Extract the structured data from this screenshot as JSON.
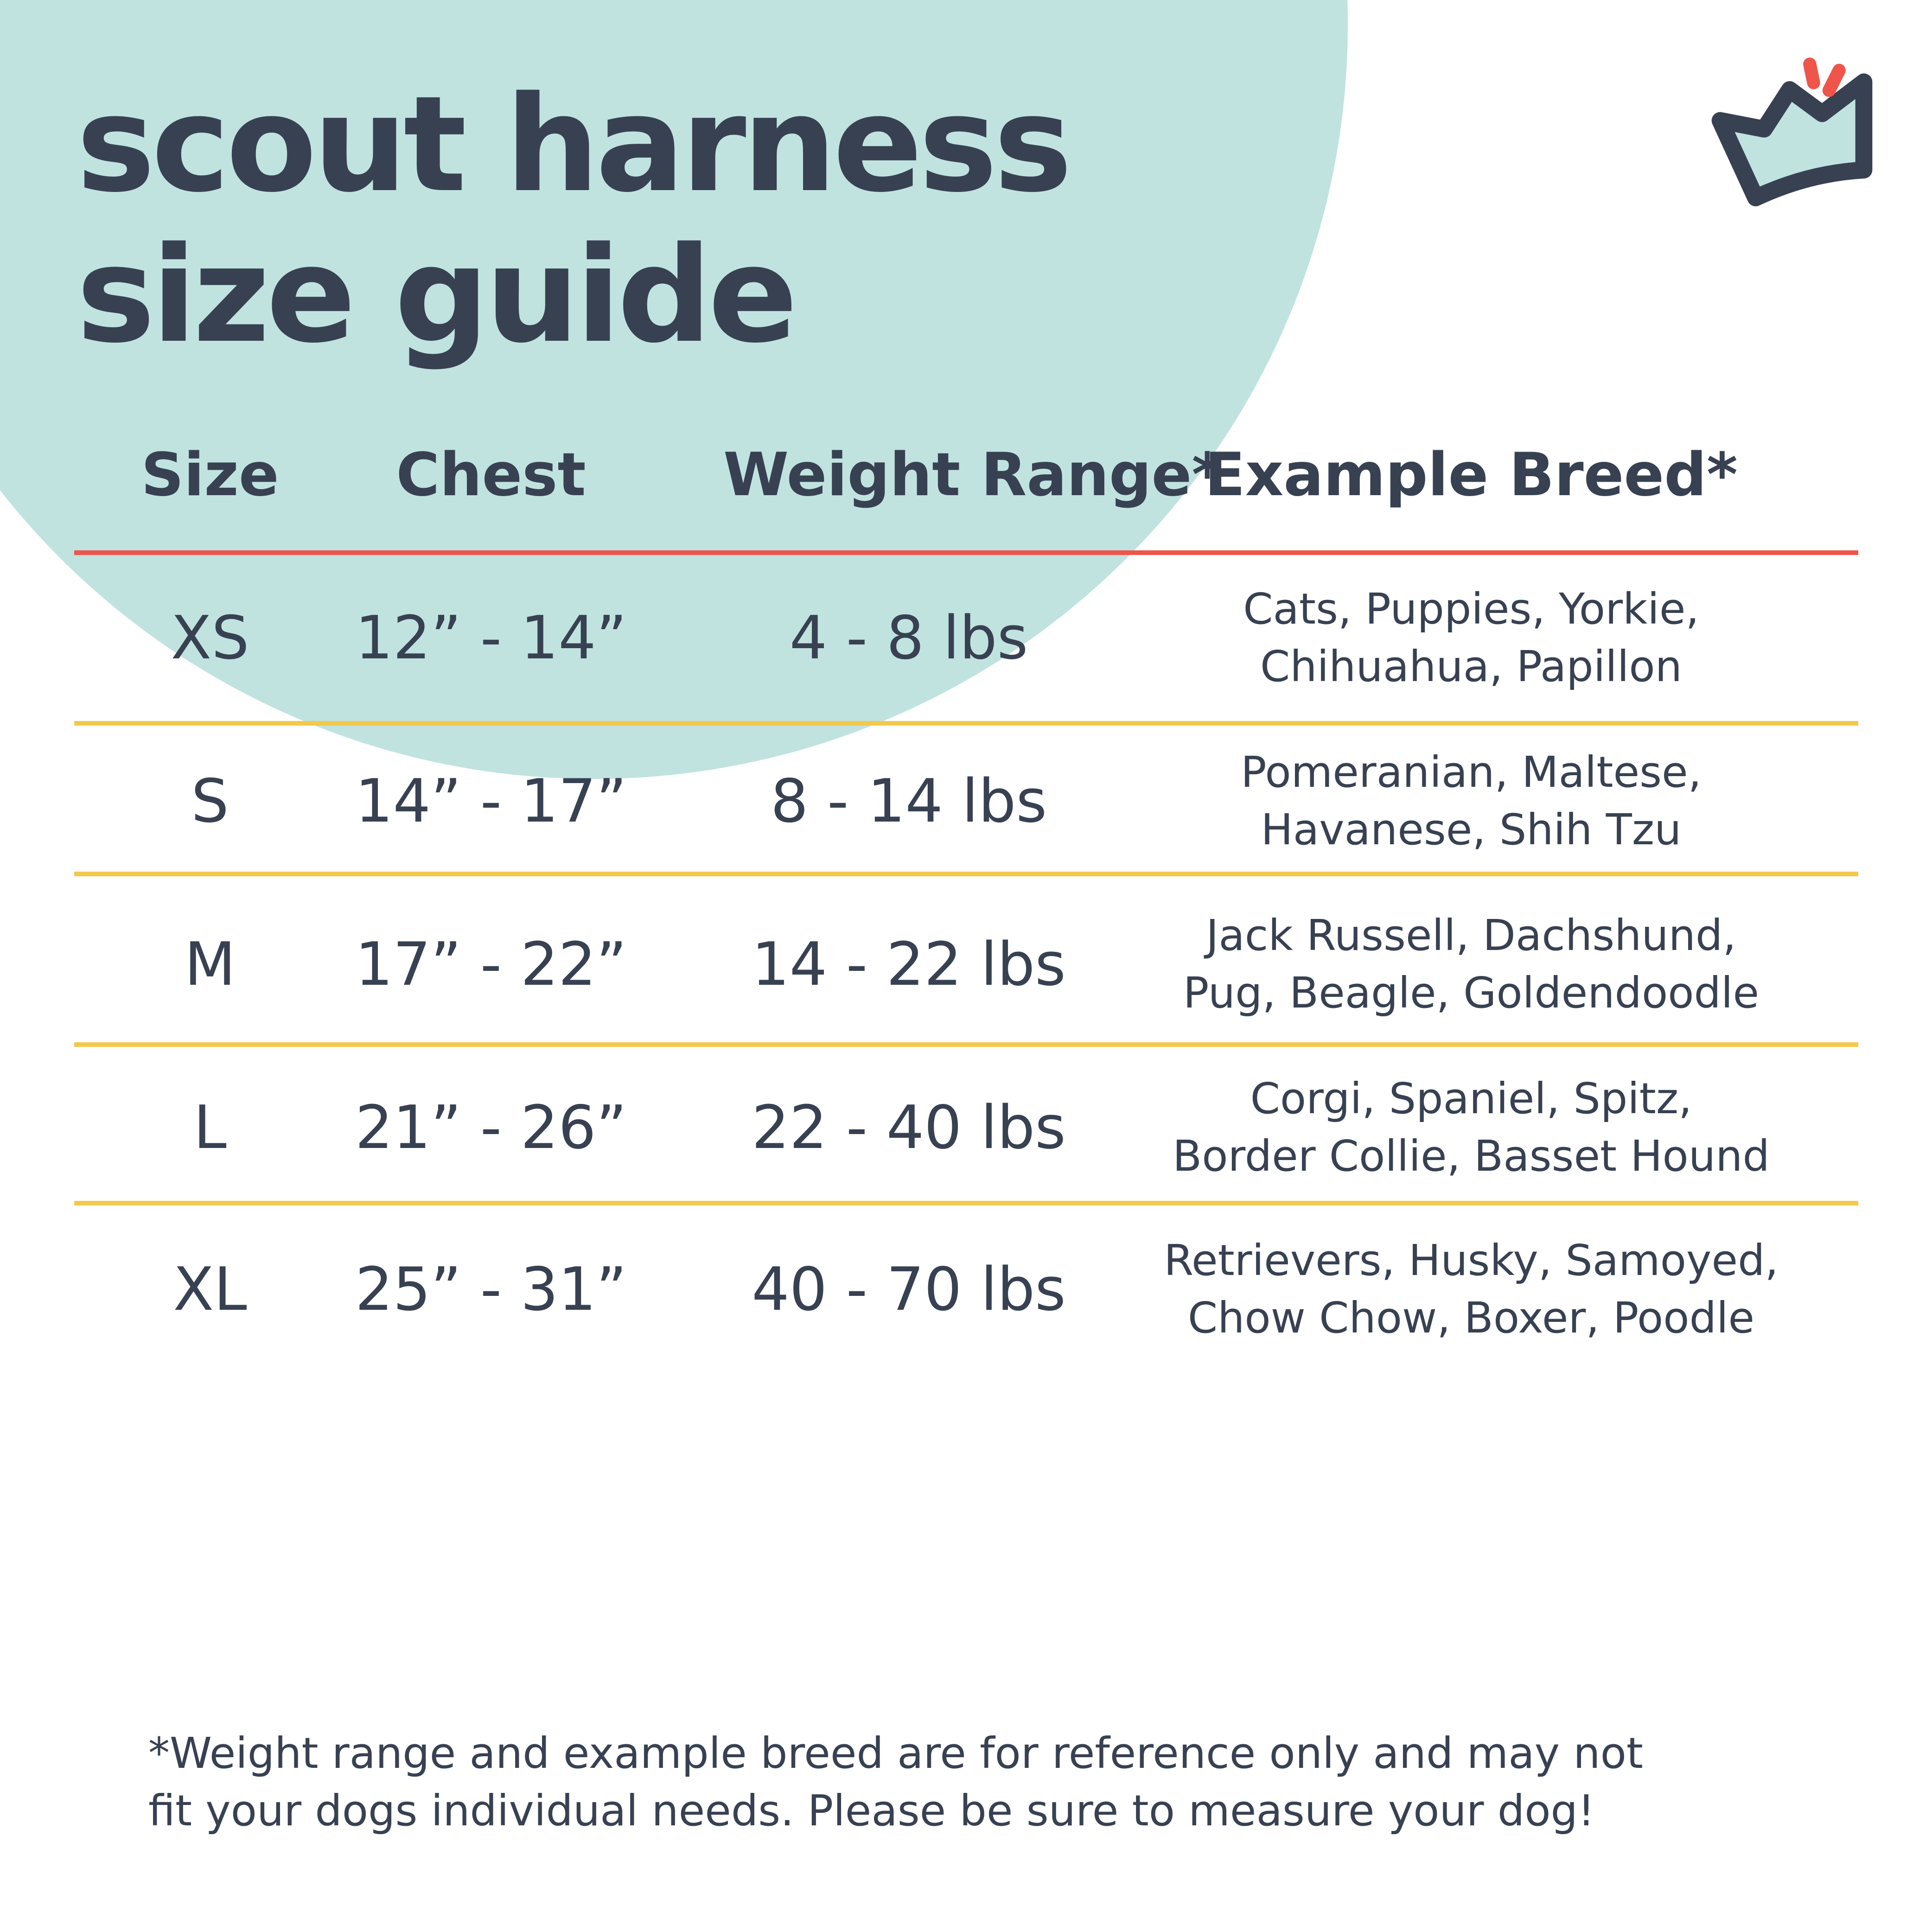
{
  "title_lines": [
    "scout harness",
    "size guide"
  ],
  "logo": {
    "icon": "crown-icon",
    "colors": {
      "outline": "#384152",
      "fill": "#c0e3e0",
      "accent": "#ef554a"
    }
  },
  "colors": {
    "text": "#384152",
    "circle": "#c0e3e0",
    "header_rule": "#ef554a",
    "row_rule": "#f2c94c"
  },
  "table": {
    "headers": [
      "Size",
      "Chest",
      "Weight Range*",
      "Example Breed*"
    ],
    "rows": [
      {
        "size": "XS",
        "chest": "12” - 14”",
        "weight": "4 - 8 lbs",
        "breed_lines": [
          "Cats, Puppies, Yorkie,",
          "Chihuahua, Papillon"
        ]
      },
      {
        "size": "S",
        "chest": "14” - 17”",
        "weight": "8 - 14 lbs",
        "breed_lines": [
          "Pomeranian, Maltese,",
          "Havanese, Shih Tzu"
        ]
      },
      {
        "size": "M",
        "chest": "17” - 22”",
        "weight": "14 - 22 lbs",
        "breed_lines": [
          "Jack Russell, Dachshund,",
          "Pug, Beagle, Goldendoodle"
        ]
      },
      {
        "size": "L",
        "chest": "21” - 26”",
        "weight": "22 - 40 lbs",
        "breed_lines": [
          "Corgi, Spaniel, Spitz,",
          "Border Collie, Basset Hound"
        ]
      },
      {
        "size": "XL",
        "chest": "25” - 31”",
        "weight": "40 - 70 lbs",
        "breed_lines": [
          "Retrievers, Husky, Samoyed,",
          "Chow Chow, Boxer, Poodle"
        ]
      }
    ]
  },
  "footnote_lines": [
    "*Weight range and example breed are for reference only and may not",
    "fit your dogs individual needs. Please be sure to measure your dog!"
  ]
}
